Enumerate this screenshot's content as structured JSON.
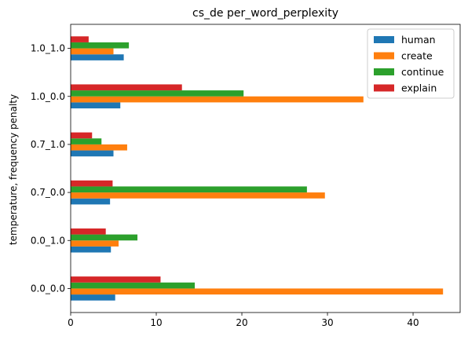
{
  "chart_data": {
    "type": "bar",
    "orientation": "horizontal",
    "title": "cs_de per_word_perplexity",
    "xlabel": "",
    "ylabel": "temperature, frequency penalty",
    "xlim": [
      0,
      45.5
    ],
    "xticks": [
      0,
      10,
      20,
      30,
      40
    ],
    "grid": false,
    "legend_position": "top-right",
    "categories": [
      "0.0_0.0",
      "0.0_1.0",
      "0.7_0.0",
      "0.7_1.0",
      "1.0_0.0",
      "1.0_1.0"
    ],
    "series": [
      {
        "name": "human",
        "color": "#1f77b4",
        "values": [
          5.2,
          4.7,
          4.6,
          5.0,
          5.8,
          6.2
        ]
      },
      {
        "name": "create",
        "color": "#ff7f0e",
        "values": [
          43.5,
          5.6,
          29.7,
          6.6,
          34.2,
          5.0
        ]
      },
      {
        "name": "continue",
        "color": "#2ca02c",
        "values": [
          14.5,
          7.8,
          27.6,
          3.6,
          20.2,
          6.8
        ]
      },
      {
        "name": "explain",
        "color": "#d62728",
        "values": [
          10.5,
          4.1,
          4.9,
          2.5,
          13.0,
          2.1
        ]
      }
    ]
  }
}
